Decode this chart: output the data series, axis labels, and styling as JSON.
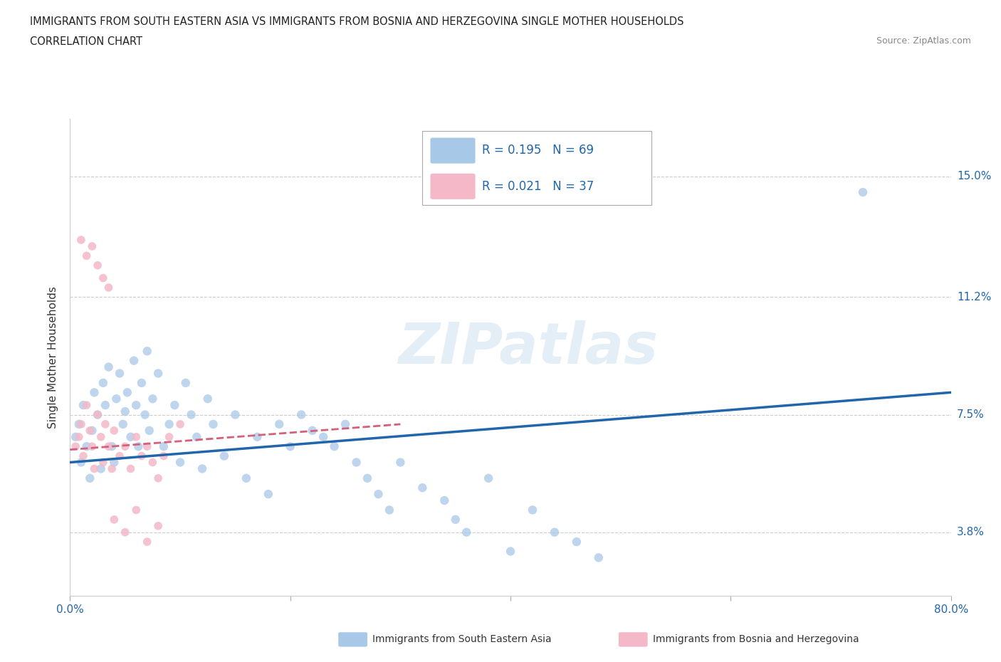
{
  "title_line1": "IMMIGRANTS FROM SOUTH EASTERN ASIA VS IMMIGRANTS FROM BOSNIA AND HERZEGOVINA SINGLE MOTHER HOUSEHOLDS",
  "title_line2": "CORRELATION CHART",
  "source": "Source: ZipAtlas.com",
  "ylabel": "Single Mother Households",
  "xlim": [
    0.0,
    0.8
  ],
  "ylim": [
    0.018,
    0.168
  ],
  "yticks": [
    0.038,
    0.075,
    0.112,
    0.15
  ],
  "ytick_labels": [
    "3.8%",
    "7.5%",
    "11.2%",
    "15.0%"
  ],
  "xticks": [
    0.0,
    0.2,
    0.4,
    0.6,
    0.8
  ],
  "xtick_labels": [
    "0.0%",
    "",
    "",
    "",
    "80.0%"
  ],
  "grid_color": "#cccccc",
  "watermark": "ZIPatlas",
  "blue_color": "#a8c8e8",
  "blue_line_color": "#2166ac",
  "pink_color": "#f4b8c8",
  "pink_line_color": "#d4607a",
  "label1": "Immigrants from South Eastern Asia",
  "label2": "Immigrants from Bosnia and Herzegovina",
  "blue_scatter_x": [
    0.005,
    0.008,
    0.01,
    0.012,
    0.015,
    0.018,
    0.02,
    0.022,
    0.025,
    0.028,
    0.03,
    0.032,
    0.035,
    0.038,
    0.04,
    0.042,
    0.045,
    0.048,
    0.05,
    0.052,
    0.055,
    0.058,
    0.06,
    0.062,
    0.065,
    0.068,
    0.07,
    0.072,
    0.075,
    0.08,
    0.085,
    0.09,
    0.095,
    0.1,
    0.105,
    0.11,
    0.115,
    0.12,
    0.125,
    0.13,
    0.14,
    0.15,
    0.16,
    0.17,
    0.18,
    0.19,
    0.2,
    0.21,
    0.22,
    0.23,
    0.24,
    0.25,
    0.26,
    0.27,
    0.28,
    0.29,
    0.3,
    0.32,
    0.34,
    0.35,
    0.36,
    0.38,
    0.4,
    0.42,
    0.44,
    0.46,
    0.48,
    0.72
  ],
  "blue_scatter_y": [
    0.068,
    0.072,
    0.06,
    0.078,
    0.065,
    0.055,
    0.07,
    0.082,
    0.075,
    0.058,
    0.085,
    0.078,
    0.09,
    0.065,
    0.06,
    0.08,
    0.088,
    0.072,
    0.076,
    0.082,
    0.068,
    0.092,
    0.078,
    0.065,
    0.085,
    0.075,
    0.095,
    0.07,
    0.08,
    0.088,
    0.065,
    0.072,
    0.078,
    0.06,
    0.085,
    0.075,
    0.068,
    0.058,
    0.08,
    0.072,
    0.062,
    0.075,
    0.055,
    0.068,
    0.05,
    0.072,
    0.065,
    0.075,
    0.07,
    0.068,
    0.065,
    0.072,
    0.06,
    0.055,
    0.05,
    0.045,
    0.06,
    0.052,
    0.048,
    0.042,
    0.038,
    0.055,
    0.032,
    0.045,
    0.038,
    0.035,
    0.03,
    0.145
  ],
  "pink_scatter_x": [
    0.005,
    0.008,
    0.01,
    0.012,
    0.015,
    0.018,
    0.02,
    0.022,
    0.025,
    0.028,
    0.03,
    0.032,
    0.035,
    0.038,
    0.04,
    0.045,
    0.05,
    0.055,
    0.06,
    0.065,
    0.07,
    0.075,
    0.08,
    0.085,
    0.09,
    0.1,
    0.01,
    0.015,
    0.02,
    0.025,
    0.03,
    0.035,
    0.04,
    0.05,
    0.06,
    0.07,
    0.08
  ],
  "pink_scatter_y": [
    0.065,
    0.068,
    0.072,
    0.062,
    0.078,
    0.07,
    0.065,
    0.058,
    0.075,
    0.068,
    0.06,
    0.072,
    0.065,
    0.058,
    0.07,
    0.062,
    0.065,
    0.058,
    0.068,
    0.062,
    0.065,
    0.06,
    0.055,
    0.062,
    0.068,
    0.072,
    0.13,
    0.125,
    0.128,
    0.122,
    0.118,
    0.115,
    0.042,
    0.038,
    0.045,
    0.035,
    0.04
  ],
  "blue_line_x": [
    0.0,
    0.8
  ],
  "blue_line_y": [
    0.06,
    0.082
  ],
  "pink_line_x": [
    0.0,
    0.3
  ],
  "pink_line_y": [
    0.064,
    0.072
  ],
  "blue_marker_size": 80,
  "pink_marker_size": 70
}
